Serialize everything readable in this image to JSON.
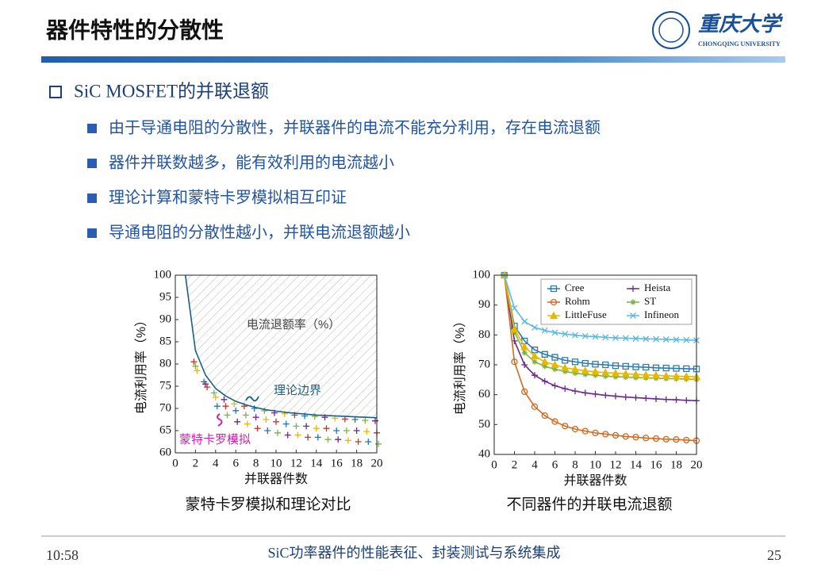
{
  "header": {
    "title": "器件特性的分散性",
    "logo_name": "重庆大学",
    "logo_subtitle": "CHONGQING UNIVERSITY"
  },
  "heading": "SiC MOSFET的并联退额",
  "bullets": [
    "由于导通电阻的分散性，并联器件的电流不能充分利用，存在电流退额",
    "器件并联数越多，能有效利用的电流越小",
    "理论计算和蒙特卡罗模拟相互印证",
    "导通电阻的分散性越小，并联电流退额越小"
  ],
  "captions": [
    "蒙特卡罗模拟和理论对比",
    "不同器件的并联电流退额"
  ],
  "footer": {
    "time": "10:58",
    "text": "SiC功率器件的性能表征、封装测试与系统集成",
    "page": 25
  },
  "chart_data": [
    {
      "type": "line",
      "xlabel": "并联器件数",
      "ylabel": "电流利用率（%）",
      "hatch": true,
      "x": [
        1,
        2,
        3,
        4,
        5,
        6,
        7,
        8,
        9,
        10,
        11,
        12,
        13,
        14,
        15,
        16,
        17,
        18,
        19,
        20
      ],
      "xlim": [
        0,
        20
      ],
      "xticks": [
        0,
        2,
        4,
        6,
        8,
        10,
        12,
        14,
        16,
        18,
        20
      ],
      "ylim": [
        60,
        100
      ],
      "yticks": [
        60,
        65,
        70,
        75,
        80,
        85,
        90,
        95,
        100
      ],
      "annotations": [
        "电流退额率（%）"
      ],
      "series": [
        {
          "name": "理论边界",
          "color": "#1a5f8a",
          "values": [
            100,
            83,
            77.5,
            74.5,
            72.8,
            71.6,
            70.8,
            70.2,
            69.7,
            69.4,
            69.1,
            68.9,
            68.7,
            68.5,
            68.4,
            68.3,
            68.2,
            68.1,
            68.0,
            67.9
          ]
        }
      ],
      "points": {
        "name": "蒙特卡罗模拟",
        "colors": [
          "#c0392b",
          "#7cb342",
          "#e6b800",
          "#1f77b4",
          "#6a2a8a"
        ],
        "x": [
          2,
          2,
          2,
          3,
          3,
          3,
          4,
          4,
          4,
          5,
          5,
          5,
          6,
          6,
          6,
          7,
          7,
          7,
          8,
          8,
          8,
          9,
          9,
          9,
          10,
          10,
          10,
          11,
          11,
          11,
          12,
          12,
          12,
          13,
          13,
          13,
          14,
          14,
          14,
          15,
          15,
          15,
          16,
          16,
          16,
          17,
          17,
          17,
          18,
          18,
          18,
          19,
          19,
          19,
          20,
          20,
          20
        ],
        "y": [
          80.5,
          79.5,
          78.5,
          76,
          75.5,
          74.8,
          73.5,
          72.5,
          70.5,
          72,
          70.5,
          68.5,
          71,
          69.5,
          67,
          70.5,
          68.5,
          66.5,
          70,
          68,
          65.5,
          69.5,
          67.5,
          65,
          69,
          67,
          64.5,
          68.8,
          66.5,
          64,
          68.5,
          66,
          64,
          68.3,
          66,
          63.5,
          68.2,
          65.5,
          63.5,
          68,
          65.5,
          63,
          67.8,
          65,
          63,
          67.6,
          65,
          62.8,
          67.5,
          65,
          62.5,
          67.3,
          64.8,
          62.5,
          67.2,
          64.5,
          62
        ]
      }
    },
    {
      "type": "line",
      "xlabel": "并联器件数",
      "ylabel": "电流利用率（%）",
      "legend": "upper right",
      "x": [
        1,
        2,
        3,
        4,
        5,
        6,
        7,
        8,
        9,
        10,
        11,
        12,
        13,
        14,
        15,
        16,
        17,
        18,
        19,
        20
      ],
      "xlim": [
        0,
        20
      ],
      "xticks": [
        0,
        2,
        4,
        6,
        8,
        10,
        12,
        14,
        16,
        18,
        20
      ],
      "ylim": [
        40,
        100
      ],
      "yticks": [
        40,
        50,
        60,
        70,
        80,
        90,
        100
      ],
      "series": [
        {
          "name": "Cree",
          "color": "#2a7ab0",
          "marker": "square",
          "values": [
            100,
            83,
            78,
            75,
            73.5,
            72.5,
            71.5,
            71,
            70.5,
            70.2,
            70,
            69.7,
            69.5,
            69.3,
            69.2,
            69,
            68.9,
            68.8,
            68.7,
            68.6
          ]
        },
        {
          "name": "Heista",
          "color": "#6a2a8a",
          "marker": "plus",
          "values": [
            100,
            78,
            70,
            66.5,
            64.5,
            63,
            62,
            61.2,
            60.6,
            60.2,
            59.8,
            59.5,
            59.2,
            59,
            58.8,
            58.6,
            58.4,
            58.3,
            58.1,
            58
          ]
        },
        {
          "name": "Rohm",
          "color": "#d2691e",
          "marker": "circle",
          "values": [
            100,
            71,
            61,
            56,
            53,
            51,
            49.5,
            48.5,
            47.8,
            47.2,
            46.8,
            46.4,
            46,
            45.8,
            45.5,
            45.3,
            45.1,
            45,
            44.8,
            44.6
          ]
        },
        {
          "name": "ST",
          "color": "#7cb342",
          "marker": "asterisk",
          "values": [
            100,
            81,
            74,
            71,
            69.5,
            68.5,
            67.8,
            67.2,
            66.8,
            66.5,
            66.2,
            66,
            65.9,
            65.7,
            65.6,
            65.5,
            65.4,
            65.3,
            65.2,
            65.1
          ]
        },
        {
          "name": "LittleFuse",
          "color": "#e6b800",
          "marker": "triangle",
          "values": [
            100,
            82,
            76,
            73,
            71,
            70,
            69,
            68.5,
            68,
            67.7,
            67.4,
            67.2,
            67,
            66.8,
            66.6,
            66.5,
            66.3,
            66.2,
            66.1,
            66
          ]
        },
        {
          "name": "Infineon",
          "color": "#5bb8e0",
          "marker": "x",
          "values": [
            100,
            89,
            84.5,
            82.5,
            81.5,
            80.8,
            80.3,
            79.9,
            79.6,
            79.4,
            79.2,
            79,
            78.9,
            78.8,
            78.7,
            78.6,
            78.5,
            78.4,
            78.3,
            78.2
          ]
        }
      ]
    }
  ]
}
